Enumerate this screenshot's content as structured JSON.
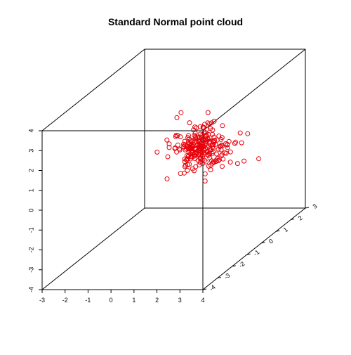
{
  "chart_data": {
    "type": "scatter",
    "title": "Standard Normal point cloud",
    "projection": "3d-box",
    "marker": "open-circle",
    "point_color": "#e8000b",
    "x_axis": {
      "range": [
        -3,
        4
      ],
      "ticks": [
        -3,
        -2,
        -1,
        0,
        1,
        2,
        3,
        4
      ]
    },
    "y_axis": {
      "range": [
        -4,
        3
      ],
      "ticks": [
        -4,
        -3,
        -2,
        -1,
        0,
        1,
        2,
        3
      ]
    },
    "z_axis": {
      "range": [
        -4,
        4
      ],
      "ticks": [
        -4,
        -3,
        -2,
        -1,
        0,
        1,
        2,
        3,
        4
      ]
    },
    "grid": false,
    "legend": "none",
    "points": [
      [
        -0.28,
        0.27,
        -0.93
      ],
      [
        0.12,
        0.85,
        0.62
      ],
      [
        1.19,
        -0.83,
        0.72
      ],
      [
        -0.14,
        0.72,
        1.89
      ],
      [
        0.67,
        1.15,
        0.65
      ],
      [
        0.86,
        -0.9,
        1.95
      ],
      [
        0.83,
        0.79,
        1.39
      ],
      [
        1.71,
        0.51,
        -0.13
      ],
      [
        0.84,
        0.89,
        0.02
      ],
      [
        1.98,
        0.83,
        0.48
      ],
      [
        1.86,
        1.04,
        0.2
      ],
      [
        1.2,
        1.37,
        0.38
      ],
      [
        0.14,
        1.27,
        0.07
      ],
      [
        0.27,
        2.62,
        -1.47
      ],
      [
        0.58,
        1.2,
        -0.47
      ],
      [
        0.17,
        1.76,
        -0.61
      ],
      [
        0.83,
        0.04,
        -0.06
      ],
      [
        1.26,
        0.12,
        0.23
      ],
      [
        0.46,
        1.71,
        -1.52
      ],
      [
        1.57,
        -0.23,
        0.31
      ],
      [
        0.14,
        1.85,
        -0.44
      ],
      [
        1.75,
        1.9,
        -1.11
      ],
      [
        0.53,
        1.85,
        -1.22
      ],
      [
        1.64,
        0.05,
        2.54
      ],
      [
        0.57,
        0.32,
        -0.53
      ],
      [
        0.39,
        -0.13,
        0.66
      ],
      [
        0.05,
        0.88,
        0.46
      ],
      [
        0.21,
        0.03,
        0.74
      ],
      [
        0.6,
        0.23,
        0.06
      ],
      [
        0.47,
        0.79,
        -0.13
      ],
      [
        1.17,
        0.42,
        -0.24
      ],
      [
        0.35,
        0.74,
        0.98
      ],
      [
        1.48,
        1.46,
        -0.31
      ],
      [
        1.31,
        0.09,
        0.93
      ],
      [
        0.42,
        1.59,
        -0.06
      ],
      [
        1.29,
        0.95,
        0.04
      ],
      [
        0.39,
        0.48,
        -0.37
      ],
      [
        0.53,
        0.67,
        0.38
      ],
      [
        1.52,
        0.41,
        0.45
      ],
      [
        0.46,
        0.06,
        2.53
      ],
      [
        2.14,
        0.8,
        0.12
      ],
      [
        0.3,
        -0.5,
        1.1
      ],
      [
        0.37,
        0.83,
        0.4
      ],
      [
        0.95,
        0.08,
        -0.31
      ],
      [
        1.79,
        1.34,
        -0.71
      ],
      [
        1.33,
        0.89,
        0.43
      ],
      [
        0.82,
        1.43,
        0.27
      ],
      [
        0.47,
        0.3,
        0.76
      ],
      [
        0.11,
        1.39,
        -0.18
      ],
      [
        0.38,
        0.69,
        0.35
      ],
      [
        0.62,
        1.77,
        -0.74
      ],
      [
        1.04,
        1.95,
        -0.7
      ],
      [
        0.34,
        0.83,
        1.57
      ],
      [
        1.17,
        0.62,
        0.4
      ],
      [
        1.93,
        0.37,
        -0.02
      ],
      [
        0.69,
        1.67,
        0.32
      ],
      [
        1.06,
        -0.32,
        1.42
      ],
      [
        0.35,
        -1.4,
        1.4
      ],
      [
        -0.03,
        1.02,
        0.23
      ],
      [
        1.13,
        1.1,
        1.41
      ],
      [
        -0.01,
        -0.11,
        0.41
      ],
      [
        1.37,
        0.79,
        1.23
      ],
      [
        0.87,
        0.12,
        0.28
      ],
      [
        0.97,
        2.0,
        -0.48
      ],
      [
        2.33,
        0.41,
        0.87
      ],
      [
        1.32,
        1.22,
        -0.45
      ],
      [
        0.42,
        0.01,
        0.73
      ],
      [
        1.33,
        0.37,
        0.53
      ],
      [
        0.79,
        0.55,
        0.61
      ],
      [
        1.29,
        -0.26,
        1.51
      ],
      [
        0.37,
        0.82,
        0.42
      ],
      [
        0.55,
        2.01,
        -1.04
      ],
      [
        1.53,
        1.12,
        -0.27
      ],
      [
        0.71,
        -0.15,
        0.95
      ],
      [
        1.16,
        1.39,
        -0.33
      ],
      [
        0.94,
        0.84,
        0.72
      ],
      [
        0.6,
        0.69,
        1.29
      ],
      [
        1.51,
        0.37,
        1.79
      ],
      [
        1.11,
        -0.47,
        1.33
      ],
      [
        0.48,
        0.92,
        -0.9
      ],
      [
        1.17,
        0.56,
        -0.17
      ],
      [
        0.82,
        1.85,
        -0.12
      ],
      [
        -0.1,
        1.31,
        -0.58
      ],
      [
        1.18,
        0.24,
        1.34
      ],
      [
        0.26,
        1.06,
        0.48
      ],
      [
        1.22,
        0.49,
        0.64
      ],
      [
        0.44,
        1.44,
        -0.58
      ],
      [
        1.82,
        1.01,
        -0.07
      ],
      [
        0.89,
        1.12,
        0.79
      ],
      [
        1.04,
        0.65,
        1.46
      ],
      [
        0.21,
        0.37,
        0.47
      ],
      [
        0.33,
        0.86,
        0.47
      ],
      [
        1.26,
        0.4,
        0.43
      ],
      [
        1.56,
        0.47,
        0.23
      ],
      [
        0.7,
        0.64,
        -0.13
      ],
      [
        0.41,
        1.48,
        0.03
      ],
      [
        1.32,
        -0.57,
        1.26
      ],
      [
        0.77,
        1.76,
        -0.27
      ],
      [
        0.89,
        0.33,
        1.65
      ],
      [
        0.13,
        1.67,
        -0.4
      ],
      [
        1.6,
        1.04,
        0.33
      ],
      [
        1.93,
        1.48,
        0.21
      ],
      [
        1.09,
        0.72,
        -1.3
      ],
      [
        1.63,
        1.28,
        0.25
      ],
      [
        1.69,
        1.8,
        -0.04
      ],
      [
        2.31,
        1.46,
        -0.73
      ],
      [
        0.3,
        0.72,
        -0.02
      ],
      [
        0.76,
        1.73,
        -0.06
      ],
      [
        0.9,
        1.38,
        0.96
      ],
      [
        1.35,
        1.48,
        0.02
      ],
      [
        1.72,
        0.37,
        0.96
      ],
      [
        1.29,
        0.7,
        0.62
      ],
      [
        0.77,
        0.89,
        0.31
      ],
      [
        1.14,
        1.14,
        0.8
      ],
      [
        1.12,
        0.85,
        1.55
      ],
      [
        -0.2,
        0.88,
        0.42
      ],
      [
        1.46,
        -0.5,
        1.06
      ],
      [
        1.12,
        0.27,
        -0.23
      ],
      [
        0.94,
        0.42,
        1.05
      ],
      [
        0.87,
        0.58,
        -0.18
      ],
      [
        1.02,
        0.96,
        0.03
      ],
      [
        0.13,
        0.21,
        1.24
      ],
      [
        -0.16,
        0.07,
        1.15
      ],
      [
        1.52,
        0.64,
        0.67
      ],
      [
        0.38,
        0.65,
        0.93
      ],
      [
        0.82,
        -0.54,
        -0.18
      ],
      [
        0.86,
        0.09,
        0.18
      ],
      [
        0.59,
        1.22,
        0.32
      ],
      [
        -0.07,
        0.85,
        0.85
      ],
      [
        -0.02,
        0.41,
        0.55
      ],
      [
        0.73,
        0.25,
        0.62
      ],
      [
        1.55,
        1.15,
        0.64
      ],
      [
        2.66,
        1.92,
        -0.88
      ],
      [
        0.9,
        0.58,
        0.32
      ],
      [
        1.15,
        0.66,
        1.01
      ],
      [
        0.96,
        0.83,
        1.33
      ],
      [
        0.78,
        0.88,
        0.17
      ],
      [
        2.14,
        1.47,
        0.68
      ],
      [
        2.33,
        1.26,
        0.31
      ],
      [
        0.47,
        0.26,
        -0.63
      ],
      [
        1.48,
        0.05,
        1.51
      ],
      [
        0.99,
        0.71,
        0.41
      ],
      [
        0.78,
        1.07,
        1.17
      ],
      [
        0.48,
        1.08,
        -0.12
      ],
      [
        1.54,
        0.76,
        -0.34
      ],
      [
        1.2,
        1.12,
        0.48
      ],
      [
        1.95,
        0.37,
        0.64
      ],
      [
        1.01,
        0.65,
        0.5
      ],
      [
        0.54,
        0.2,
        -0.27
      ],
      [
        0.24,
        0.87,
        -0.27
      ],
      [
        2.7,
        1.1,
        0.86
      ],
      [
        0.72,
        0.56,
        1.1
      ],
      [
        1.28,
        1.64,
        -0.73
      ],
      [
        0.27,
        0.61,
        -0.25
      ],
      [
        0.38,
        0.78,
        0.37
      ],
      [
        0.77,
        0.48,
        0.77
      ],
      [
        1.57,
        0.87,
        -0.36
      ],
      [
        0.96,
        1.54,
        1.23
      ],
      [
        0.71,
        0.21,
        0.88
      ],
      [
        1.59,
        1.12,
        1.25
      ],
      [
        0.96,
        1.49,
        -0.78
      ],
      [
        0.7,
        0.18,
        0.25
      ],
      [
        1.03,
        1.75,
        0.36
      ],
      [
        0.49,
        1.72,
        -0.92
      ],
      [
        -0.15,
        2.02,
        -1.34
      ],
      [
        1.4,
        1.32,
        0.44
      ],
      [
        0.74,
        0.55,
        0.46
      ],
      [
        1.19,
        0.38,
        0.37
      ],
      [
        0.47,
        1.31,
        0.03
      ],
      [
        0.6,
        0.52,
        0.86
      ],
      [
        0.77,
        0.31,
        0.56
      ],
      [
        -0.26,
        0.38,
        0.77
      ],
      [
        1.38,
        0.09,
        0.91
      ],
      [
        1.0,
        1.24,
        -1.04
      ],
      [
        0.88,
        0.7,
        -0.35
      ],
      [
        0.6,
        0.39,
        0.33
      ],
      [
        1.04,
        1.96,
        -1.29
      ],
      [
        0.52,
        1.02,
        1.2
      ],
      [
        1.54,
        0.23,
        1.09
      ],
      [
        0.3,
        0.9,
        0.28
      ],
      [
        0.93,
        0.94,
        1.43
      ],
      [
        0.67,
        1.51,
        0.85
      ],
      [
        1.17,
        0.4,
        1.01
      ],
      [
        0.34,
        0.96,
        0.01
      ],
      [
        0.9,
        0.85,
        -0.14
      ],
      [
        0.6,
        0.29,
        -0.23
      ],
      [
        0.79,
        0.06,
        0.7
      ],
      [
        1.24,
        0.98,
        0.25
      ],
      [
        1.47,
        0.68,
        0.7
      ],
      [
        1.58,
        1.45,
        0.09
      ],
      [
        1.23,
        1.0,
        -0.57
      ],
      [
        0.94,
        0.71,
        0.39
      ],
      [
        0.9,
        0.34,
        1.33
      ],
      [
        0.82,
        0.44,
        0.51
      ],
      [
        0.78,
        1.6,
        -1.02
      ],
      [
        0.32,
        1.31,
        -0.06
      ],
      [
        1.15,
        0.84,
        -0.09
      ],
      [
        0.8,
        1.1,
        -0.09
      ],
      [
        1.73,
        0.62,
        0.36
      ],
      [
        0.79,
        1.0,
        0.59
      ],
      [
        1.45,
        1.21,
        0.17
      ],
      [
        0.14,
        1.08,
        -0.23
      ],
      [
        0.69,
        1.01,
        0.15
      ],
      [
        0.37,
        0.84,
        0.0
      ],
      [
        0.94,
        0.57,
        0.77
      ],
      [
        1.21,
        0.44,
        0.9
      ],
      [
        0.12,
        0.88,
        0.17
      ],
      [
        0.22,
        0.21,
        1.29
      ],
      [
        0.48,
        1.06,
        -0.16
      ],
      [
        0.71,
        0.49,
        0.88
      ],
      [
        0.97,
        0.76,
        0.52
      ],
      [
        1.07,
        0.87,
        0.61
      ],
      [
        0.69,
        0.94,
        0.54
      ],
      [
        1.2,
        0.73,
        0.37
      ],
      [
        1.12,
        0.41,
        0.57
      ],
      [
        0.27,
        0.97,
        0.19
      ],
      [
        1.46,
        0.45,
        0.23
      ],
      [
        0.52,
        0.86,
        -0.13
      ],
      [
        0.96,
        0.42,
        0.72
      ],
      [
        0.2,
        0.87,
        0.33
      ],
      [
        0.54,
        0.73,
        0.43
      ],
      [
        0.87,
        1.07,
        0.38
      ],
      [
        0.6,
        0.9,
        0.59
      ],
      [
        0.88,
        1.05,
        0.62
      ],
      [
        0.41,
        0.5,
        0.45
      ],
      [
        0.85,
        0.7,
        0.45
      ],
      [
        1.13,
        0.56,
        0.35
      ],
      [
        0.64,
        0.71,
        -0.03
      ],
      [
        0.62,
        1.05,
        0.71
      ],
      [
        1.18,
        1.18,
        0.64
      ],
      [
        1.05,
        0.72,
        0.05
      ],
      [
        0.7,
        0.43,
        0.36
      ],
      [
        1.06,
        0.8,
        1.09
      ],
      [
        1.18,
        0.73,
        0.14
      ],
      [
        0.97,
        0.58,
        0.2
      ],
      [
        1.06,
        1.05,
        0.44
      ],
      [
        0.87,
        0.95,
        0.31
      ],
      [
        1.09,
        0.9,
        -0.07
      ],
      [
        0.56,
        0.33,
        0.65
      ],
      [
        0.64,
        1.12,
        0.23
      ],
      [
        1.05,
        0.71,
        0.26
      ],
      [
        0.8,
        0.95,
        0.86
      ],
      [
        1.1,
        0.34,
        0.74
      ],
      [
        0.71,
        0.88,
        -0.06
      ],
      [
        0.83,
        1.3,
        0.49
      ],
      [
        1.03,
        0.86,
        0.69
      ],
      [
        0.77,
        0.59,
        0.92
      ],
      [
        1.28,
        0.7,
        0.11
      ],
      [
        0.56,
        1.13,
        0.52
      ],
      [
        0.86,
        0.37,
        0.32
      ],
      [
        1.04,
        1.14,
        0.09
      ],
      [
        0.66,
        0.64,
        0.56
      ],
      [
        1.13,
        0.89,
        0.94
      ],
      [
        0.6,
        0.81,
        0.76
      ],
      [
        0.95,
        0.56,
        0.45
      ]
    ]
  }
}
